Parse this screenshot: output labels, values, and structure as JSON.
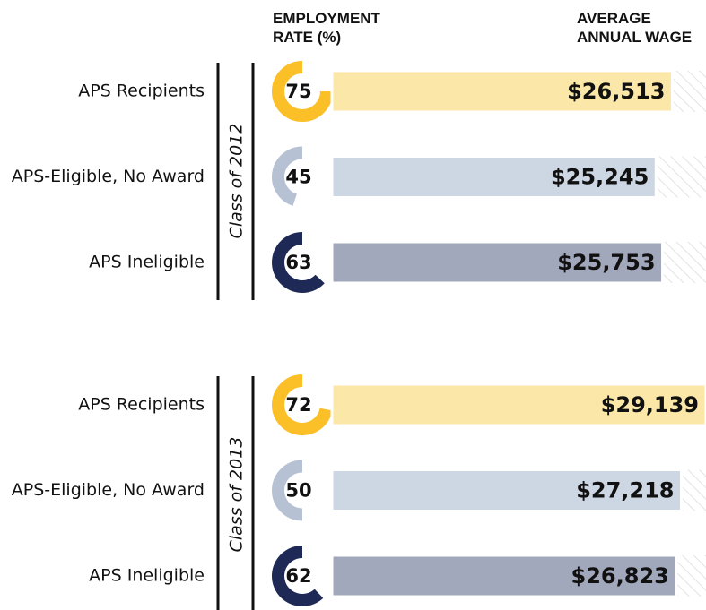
{
  "chart_data": {
    "type": "bar",
    "employment_rate_label": "EMPLOYMENT RATE (%)",
    "wage_label": "AVERAGE ANNUAL WAGE",
    "ring_colors": [
      "#fbbf27",
      "#b6c2d4",
      "#1e2a55"
    ],
    "bar_colors": [
      "#fbe7a8",
      "#cdd6e3",
      "#a2a8bb"
    ],
    "groups": [
      {
        "name": "Class of 2012",
        "categories": [
          "APS Recipients",
          "APS-Eligible, No Award",
          "APS Ineligible"
        ],
        "employment_rate": [
          75,
          45,
          63
        ],
        "wage": [
          26513,
          25245,
          25753
        ],
        "wage_labels": [
          "$26,513",
          "$25,245",
          "$25,753"
        ]
      },
      {
        "name": "Class of 2013",
        "categories": [
          "APS Recipients",
          "APS-Eligible, No Award",
          "APS Ineligible"
        ],
        "employment_rate": [
          72,
          50,
          62
        ],
        "wage": [
          29139,
          27218,
          26823
        ],
        "wage_labels": [
          "$29,139",
          "$27,218",
          "$26,823"
        ]
      }
    ]
  }
}
